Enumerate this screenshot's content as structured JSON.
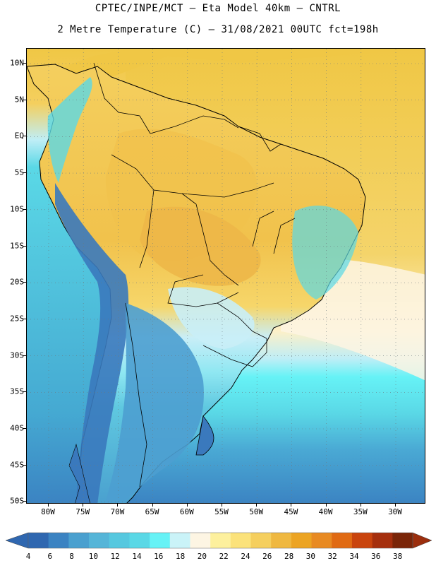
{
  "title": {
    "line1": "CPTEC/INPE/MCT –  Eta Model 40km – CNTRL",
    "line2": "2 Metre Temperature (C) – 31/08/2021 00UTC fct=198h"
  },
  "axes": {
    "y_ticks": [
      "10N",
      "5N",
      "EQ",
      "5S",
      "10S",
      "15S",
      "20S",
      "25S",
      "30S",
      "35S",
      "40S",
      "45S",
      "50S"
    ],
    "x_ticks": [
      "80W",
      "75W",
      "70W",
      "65W",
      "60W",
      "55W",
      "50W",
      "45W",
      "40W",
      "35W",
      "30W"
    ]
  },
  "colorbar": {
    "levels": [
      "4",
      "6",
      "8",
      "10",
      "12",
      "14",
      "16",
      "18",
      "20",
      "22",
      "24",
      "26",
      "28",
      "30",
      "32",
      "34",
      "36",
      "38"
    ],
    "colors": [
      "#2f67b0",
      "#3b83c2",
      "#4aa0cf",
      "#55b5d8",
      "#56c8df",
      "#5ad8e6",
      "#66f2f6",
      "#caf3f8",
      "#fdf5e3",
      "#fdf09d",
      "#fbe27a",
      "#f5cf5e",
      "#efb840",
      "#eca423",
      "#e88a22",
      "#e06a13",
      "#c9440d",
      "#a52f0d",
      "#7a2508"
    ],
    "low_color": "#2f67b0",
    "high_color": "#9b2e0d"
  },
  "palette": {
    "ocean_north": "#f0c745",
    "ocean_tropical_sw": "#5fd6e2",
    "ocean_south": "#45b7d4",
    "ocean_far_south": "#3b91c9",
    "land_warm": "#f4cf5e",
    "land_hot": "#edb748",
    "land_mild": "#fbe27a",
    "land_cool": "#c9eef7",
    "andes": "#3a79bd",
    "patagonia": "#4c9fd0",
    "coast_light": "#fdf5e3"
  }
}
